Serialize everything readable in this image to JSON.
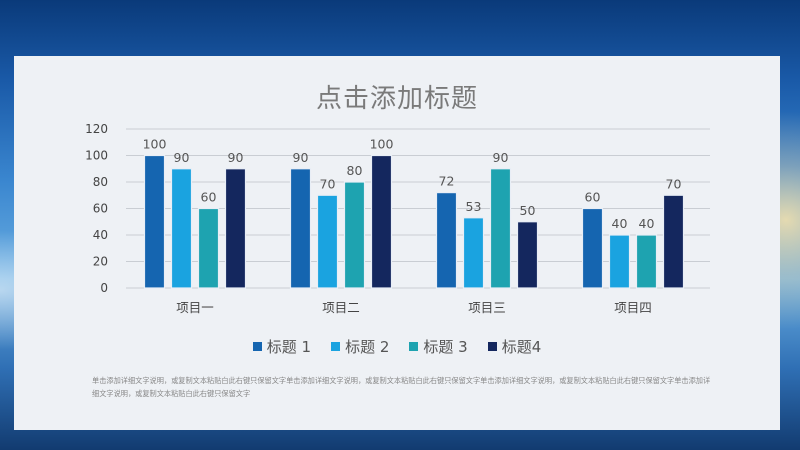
{
  "chart_data": {
    "type": "bar",
    "title": "点击添加标题",
    "categories": [
      "项目一",
      "项目二",
      "项目三",
      "项目四"
    ],
    "series": [
      {
        "name": "标题 1",
        "values": [
          100,
          90,
          72,
          60
        ],
        "color": "#1565b0"
      },
      {
        "name": "标题 2",
        "values": [
          90,
          70,
          53,
          40
        ],
        "color": "#1aa3e0"
      },
      {
        "name": "标题 3",
        "values": [
          60,
          80,
          90,
          40
        ],
        "color": "#1ea3b0"
      },
      {
        "name": "标题4",
        "values": [
          90,
          100,
          50,
          70
        ],
        "color": "#14275e"
      }
    ],
    "ylim": [
      0,
      120
    ],
    "yticks": [
      "0",
      "20",
      "40",
      "60",
      "80",
      "100",
      "120"
    ],
    "grid": true,
    "legend": "bottom"
  },
  "footnote": "单击添加详细文字说明，或复制文本粘贴白此右键只保留文字单击添加详细文字说明，或复制文本粘贴白此右键只保留文字单击添加详细文字说明，或复制文本粘贴白此右键只保留文字单击添加详细文字说明，或复制文本粘贴白此右键只保留文字"
}
